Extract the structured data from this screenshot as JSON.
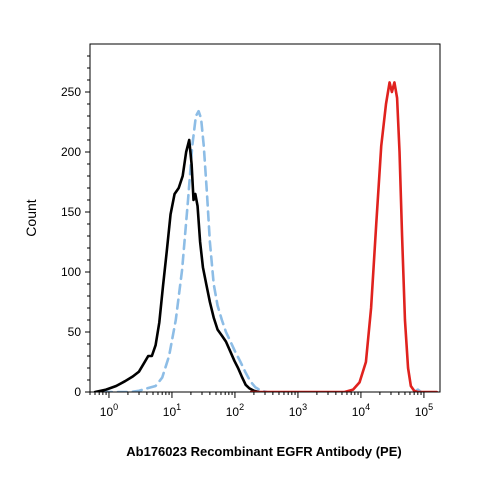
{
  "chart_data": {
    "type": "line",
    "title": "",
    "xlabel": "Ab176023 Recombinant EGFR Antibody (PE)",
    "ylabel": "Count",
    "x_scale": "log",
    "xlim": [
      0.5,
      180000
    ],
    "ylim": [
      0,
      290
    ],
    "x_ticks": [
      {
        "value": 1,
        "base": "10",
        "exp": "0"
      },
      {
        "value": 10,
        "base": "10",
        "exp": "1"
      },
      {
        "value": 100,
        "base": "10",
        "exp": "2"
      },
      {
        "value": 1000,
        "base": "10",
        "exp": "3"
      },
      {
        "value": 10000,
        "base": "10",
        "exp": "4"
      },
      {
        "value": 100000,
        "base": "10",
        "exp": "5"
      }
    ],
    "y_ticks": [
      {
        "value": 0,
        "label": "0"
      },
      {
        "value": 50,
        "label": "50"
      },
      {
        "value": 100,
        "label": "100"
      },
      {
        "value": 150,
        "label": "150"
      },
      {
        "value": 200,
        "label": "200"
      },
      {
        "value": 250,
        "label": "250"
      }
    ],
    "grid": false,
    "legend": "none",
    "series": [
      {
        "color": "#8dbde6",
        "dash": "dashed",
        "x": [
          0.8,
          1.5,
          2.2,
          3.0,
          4.0,
          5.5,
          7.0,
          9.0,
          11.5,
          14.5,
          18.0,
          21.0,
          24.0,
          26.5,
          29.0,
          32.0,
          36.0,
          40.0,
          46.0,
          53.0,
          62.0,
          72.0,
          85.0,
          100.0,
          120.0,
          145.0,
          175.0,
          210.0,
          260.0,
          320.0
        ],
        "y": [
          0,
          0,
          0,
          1,
          3,
          5,
          12,
          30,
          60,
          102,
          160,
          205,
          230,
          234,
          228,
          205,
          165,
          125,
          90,
          72,
          60,
          50,
          42,
          34,
          26,
          17,
          9,
          4,
          1,
          0
        ]
      },
      {
        "color": "#8dbde6",
        "dash": "dashed",
        "x": [
          70000,
          80000,
          90000
        ],
        "y": [
          0,
          2,
          0
        ]
      },
      {
        "color": "#000000",
        "dash": "solid",
        "x": [
          0.6,
          0.9,
          1.3,
          1.8,
          2.4,
          3.0,
          3.6,
          4.2,
          4.8,
          5.5,
          6.3,
          7.2,
          8.3,
          9.5,
          11.0,
          12.8,
          14.8,
          16.8,
          18.8,
          20.5,
          22.0,
          23.5,
          25.5,
          28.0,
          31.0,
          35.0,
          40.0,
          46.0,
          53.0,
          62.0,
          72.0,
          84.0,
          98.0,
          112.0,
          128.0,
          148.0,
          170.0,
          200.0,
          240.0
        ],
        "y": [
          0,
          2,
          5,
          9,
          13,
          17,
          24,
          30,
          30,
          39,
          58,
          88,
          118,
          148,
          165,
          170,
          180,
          200,
          210,
          190,
          160,
          165,
          155,
          125,
          104,
          90,
          75,
          62,
          52,
          47,
          42,
          34,
          26,
          20,
          13,
          6,
          3,
          1,
          0
        ]
      },
      {
        "color": "#e0221e",
        "dash": "solid",
        "x": [
          180,
          1000,
          5500,
          7500,
          9500,
          12000,
          14500,
          17500,
          21000,
          25000,
          28500,
          31000,
          34000,
          37500,
          41000,
          45000,
          50000,
          56000,
          62000,
          70000,
          80000,
          95000,
          120000,
          160000
        ],
        "y": [
          0,
          0,
          0,
          2,
          8,
          25,
          70,
          140,
          205,
          240,
          258,
          250,
          258,
          245,
          200,
          130,
          60,
          20,
          5,
          1,
          0,
          0,
          0,
          0
        ]
      }
    ]
  }
}
